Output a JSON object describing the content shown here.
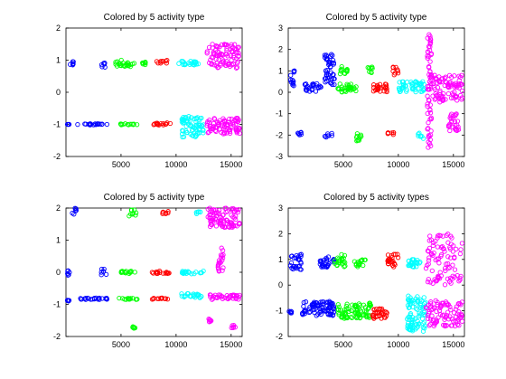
{
  "colors": {
    "blue": "#0000ff",
    "green": "#00ff00",
    "red": "#ff0000",
    "cyan": "#00ffff",
    "magenta": "#ff00ff",
    "axis": "#000000"
  },
  "chart_data": [
    {
      "type": "scatter",
      "title": "Colored by 5 activity type",
      "xlim": [
        0,
        16000
      ],
      "ylim": [
        -2,
        2
      ],
      "xticks": [
        5000,
        10000,
        15000
      ],
      "yticks": [
        -2,
        -1,
        0,
        1,
        2
      ],
      "xtick_labels": [
        "5000",
        "10000",
        "15000"
      ],
      "ytick_labels": [
        "-2",
        "-1",
        "0",
        "1",
        "2"
      ],
      "marker": "circle",
      "grid": false,
      "clusters": [
        {
          "color": "blue",
          "x": [
            300,
            800
          ],
          "y": [
            0.85,
            1.0
          ]
        },
        {
          "color": "blue",
          "x": [
            3200,
            3600
          ],
          "y": [
            0.75,
            0.95
          ]
        },
        {
          "color": "blue",
          "x": [
            100,
            300
          ],
          "y": [
            -1.0,
            -1.0
          ]
        },
        {
          "color": "blue",
          "x": [
            1000,
            3800
          ],
          "y": [
            -1.02,
            -0.98
          ]
        },
        {
          "color": "green",
          "x": [
            4500,
            6200
          ],
          "y": [
            0.8,
            1.0
          ]
        },
        {
          "color": "green",
          "x": [
            6800,
            7400
          ],
          "y": [
            0.85,
            0.95
          ]
        },
        {
          "color": "green",
          "x": [
            4800,
            6500
          ],
          "y": [
            -1.02,
            -0.98
          ]
        },
        {
          "color": "red",
          "x": [
            7800,
            9600
          ],
          "y": [
            -1.02,
            -0.95
          ]
        },
        {
          "color": "red",
          "x": [
            8200,
            9200
          ],
          "y": [
            0.9,
            1.0
          ]
        },
        {
          "color": "cyan",
          "x": [
            10200,
            12200
          ],
          "y": [
            0.85,
            0.98
          ]
        },
        {
          "color": "cyan",
          "x": [
            10500,
            12500
          ],
          "y": [
            -1.4,
            -0.75
          ]
        },
        {
          "color": "magenta",
          "x": [
            12800,
            15800
          ],
          "y": [
            0.75,
            1.5
          ]
        },
        {
          "color": "magenta",
          "x": [
            12800,
            15800
          ],
          "y": [
            -1.3,
            -0.8
          ]
        }
      ]
    },
    {
      "type": "scatter",
      "title": "Colored by 5 activity type",
      "xlim": [
        0,
        16000
      ],
      "ylim": [
        -3,
        3
      ],
      "xticks": [
        5000,
        10000,
        15000
      ],
      "yticks": [
        -3,
        -2,
        -1,
        0,
        1,
        2,
        3
      ],
      "xtick_labels": [
        "5000",
        "10000",
        "15000"
      ],
      "ytick_labels": [
        "-3",
        "-2",
        "-1",
        "0",
        "1",
        "2",
        "3"
      ],
      "marker": "circle",
      "grid": false,
      "clusters": [
        {
          "color": "blue",
          "x": [
            200,
            600
          ],
          "y": [
            0.2,
            1.1
          ]
        },
        {
          "color": "blue",
          "x": [
            1500,
            3000
          ],
          "y": [
            0.0,
            0.4
          ]
        },
        {
          "color": "blue",
          "x": [
            3300,
            4200
          ],
          "y": [
            0.3,
            1.8
          ]
        },
        {
          "color": "blue",
          "x": [
            600,
            1200
          ],
          "y": [
            -2.0,
            -1.85
          ]
        },
        {
          "color": "blue",
          "x": [
            3300,
            4000
          ],
          "y": [
            -2.1,
            -1.9
          ]
        },
        {
          "color": "green",
          "x": [
            4500,
            6300
          ],
          "y": [
            0.0,
            0.4
          ]
        },
        {
          "color": "green",
          "x": [
            4700,
            5400
          ],
          "y": [
            0.8,
            1.2
          ]
        },
        {
          "color": "green",
          "x": [
            6200,
            6800
          ],
          "y": [
            -2.3,
            -1.9
          ]
        },
        {
          "color": "green",
          "x": [
            7200,
            7800
          ],
          "y": [
            0.9,
            1.2
          ]
        },
        {
          "color": "red",
          "x": [
            7500,
            9000
          ],
          "y": [
            0.0,
            0.4
          ]
        },
        {
          "color": "red",
          "x": [
            9000,
            9600
          ],
          "y": [
            -2.0,
            -1.85
          ]
        },
        {
          "color": "red",
          "x": [
            9500,
            10000
          ],
          "y": [
            0.8,
            1.2
          ]
        },
        {
          "color": "cyan",
          "x": [
            10000,
            12500
          ],
          "y": [
            0.0,
            0.5
          ]
        },
        {
          "color": "cyan",
          "x": [
            11800,
            12300
          ],
          "y": [
            -2.2,
            -1.9
          ]
        },
        {
          "color": "magenta",
          "x": [
            12600,
            13000
          ],
          "y": [
            -2.6,
            2.7
          ]
        },
        {
          "color": "magenta",
          "x": [
            13000,
            15800
          ],
          "y": [
            -0.5,
            0.8
          ]
        },
        {
          "color": "magenta",
          "x": [
            14500,
            15500
          ],
          "y": [
            -1.8,
            -1.0
          ]
        }
      ]
    },
    {
      "type": "scatter",
      "title": "Colored by 5 activity type",
      "xlim": [
        0,
        16000
      ],
      "ylim": [
        -2,
        2
      ],
      "xticks": [
        5000,
        10000,
        15000
      ],
      "yticks": [
        -2,
        -1,
        0,
        1,
        2
      ],
      "xtick_labels": [
        "5000",
        "10000",
        "15000"
      ],
      "ytick_labels": [
        "-2",
        "-1",
        "0",
        "1",
        "2"
      ],
      "marker": "circle",
      "grid": false,
      "clusters": [
        {
          "color": "blue",
          "x": [
            500,
            1000
          ],
          "y": [
            1.8,
            2.0
          ]
        },
        {
          "color": "blue",
          "x": [
            100,
            400
          ],
          "y": [
            -0.1,
            0.05
          ]
        },
        {
          "color": "blue",
          "x": [
            3200,
            3700
          ],
          "y": [
            -0.1,
            0.1
          ]
        },
        {
          "color": "blue",
          "x": [
            100,
            300
          ],
          "y": [
            -0.9,
            -0.85
          ]
        },
        {
          "color": "blue",
          "x": [
            1000,
            3800
          ],
          "y": [
            -0.85,
            -0.8
          ]
        },
        {
          "color": "green",
          "x": [
            5700,
            6400
          ],
          "y": [
            1.75,
            1.95
          ]
        },
        {
          "color": "green",
          "x": [
            5000,
            6500
          ],
          "y": [
            -0.05,
            0.05
          ]
        },
        {
          "color": "green",
          "x": [
            4800,
            6500
          ],
          "y": [
            -0.85,
            -0.8
          ]
        },
        {
          "color": "green",
          "x": [
            6000,
            6300
          ],
          "y": [
            -1.75,
            -1.65
          ]
        },
        {
          "color": "red",
          "x": [
            8700,
            9400
          ],
          "y": [
            1.8,
            1.9
          ]
        },
        {
          "color": "red",
          "x": [
            7800,
            9400
          ],
          "y": [
            -0.05,
            0.05
          ]
        },
        {
          "color": "red",
          "x": [
            7800,
            9500
          ],
          "y": [
            -0.85,
            -0.8
          ]
        },
        {
          "color": "cyan",
          "x": [
            11800,
            12200
          ],
          "y": [
            1.8,
            1.9
          ]
        },
        {
          "color": "cyan",
          "x": [
            10500,
            12500
          ],
          "y": [
            -0.05,
            0.05
          ]
        },
        {
          "color": "cyan",
          "x": [
            10500,
            12500
          ],
          "y": [
            -0.8,
            -0.65
          ]
        },
        {
          "color": "magenta",
          "x": [
            12900,
            15800
          ],
          "y": [
            1.4,
            2.0
          ]
        },
        {
          "color": "magenta",
          "x": [
            13800,
            14300
          ],
          "y": [
            0.0,
            0.8
          ]
        },
        {
          "color": "magenta",
          "x": [
            12900,
            15800
          ],
          "y": [
            -0.85,
            -0.7
          ]
        },
        {
          "color": "magenta",
          "x": [
            12900,
            13200
          ],
          "y": [
            -1.55,
            -1.4
          ]
        },
        {
          "color": "magenta",
          "x": [
            15000,
            15400
          ],
          "y": [
            -1.75,
            -1.65
          ]
        }
      ]
    },
    {
      "type": "scatter",
      "title": "Colored by 5 activity types",
      "xlim": [
        0,
        16000
      ],
      "ylim": [
        -2,
        3
      ],
      "xticks": [
        5000,
        10000,
        15000
      ],
      "yticks": [
        -2,
        -1,
        0,
        1,
        2,
        3
      ],
      "xtick_labels": [
        "5000",
        "10000",
        "15000"
      ],
      "ytick_labels": [
        "-2",
        "-1",
        "0",
        "1",
        "2",
        "3"
      ],
      "marker": "circle",
      "grid": false,
      "clusters": [
        {
          "color": "blue",
          "x": [
            200,
            1200
          ],
          "y": [
            0.6,
            1.2
          ]
        },
        {
          "color": "blue",
          "x": [
            2800,
            4200
          ],
          "y": [
            0.7,
            1.1
          ]
        },
        {
          "color": "blue",
          "x": [
            0,
            300
          ],
          "y": [
            -1.1,
            -1.0
          ]
        },
        {
          "color": "blue",
          "x": [
            1200,
            4200
          ],
          "y": [
            -1.2,
            -0.6
          ]
        },
        {
          "color": "green",
          "x": [
            4200,
            5200
          ],
          "y": [
            0.7,
            1.2
          ]
        },
        {
          "color": "green",
          "x": [
            6000,
            7000
          ],
          "y": [
            0.7,
            1.0
          ]
        },
        {
          "color": "green",
          "x": [
            4500,
            7500
          ],
          "y": [
            -1.3,
            -0.7
          ]
        },
        {
          "color": "red",
          "x": [
            9000,
            10000
          ],
          "y": [
            0.7,
            1.2
          ]
        },
        {
          "color": "red",
          "x": [
            7500,
            9000
          ],
          "y": [
            -1.3,
            -0.9
          ]
        },
        {
          "color": "cyan",
          "x": [
            10500,
            12000
          ],
          "y": [
            0.7,
            1.0
          ]
        },
        {
          "color": "cyan",
          "x": [
            10800,
            12500
          ],
          "y": [
            -1.8,
            -0.4
          ]
        },
        {
          "color": "magenta",
          "x": [
            12500,
            15800
          ],
          "y": [
            0.0,
            2.0
          ]
        },
        {
          "color": "magenta",
          "x": [
            12500,
            15800
          ],
          "y": [
            -1.6,
            -0.6
          ]
        }
      ]
    }
  ]
}
